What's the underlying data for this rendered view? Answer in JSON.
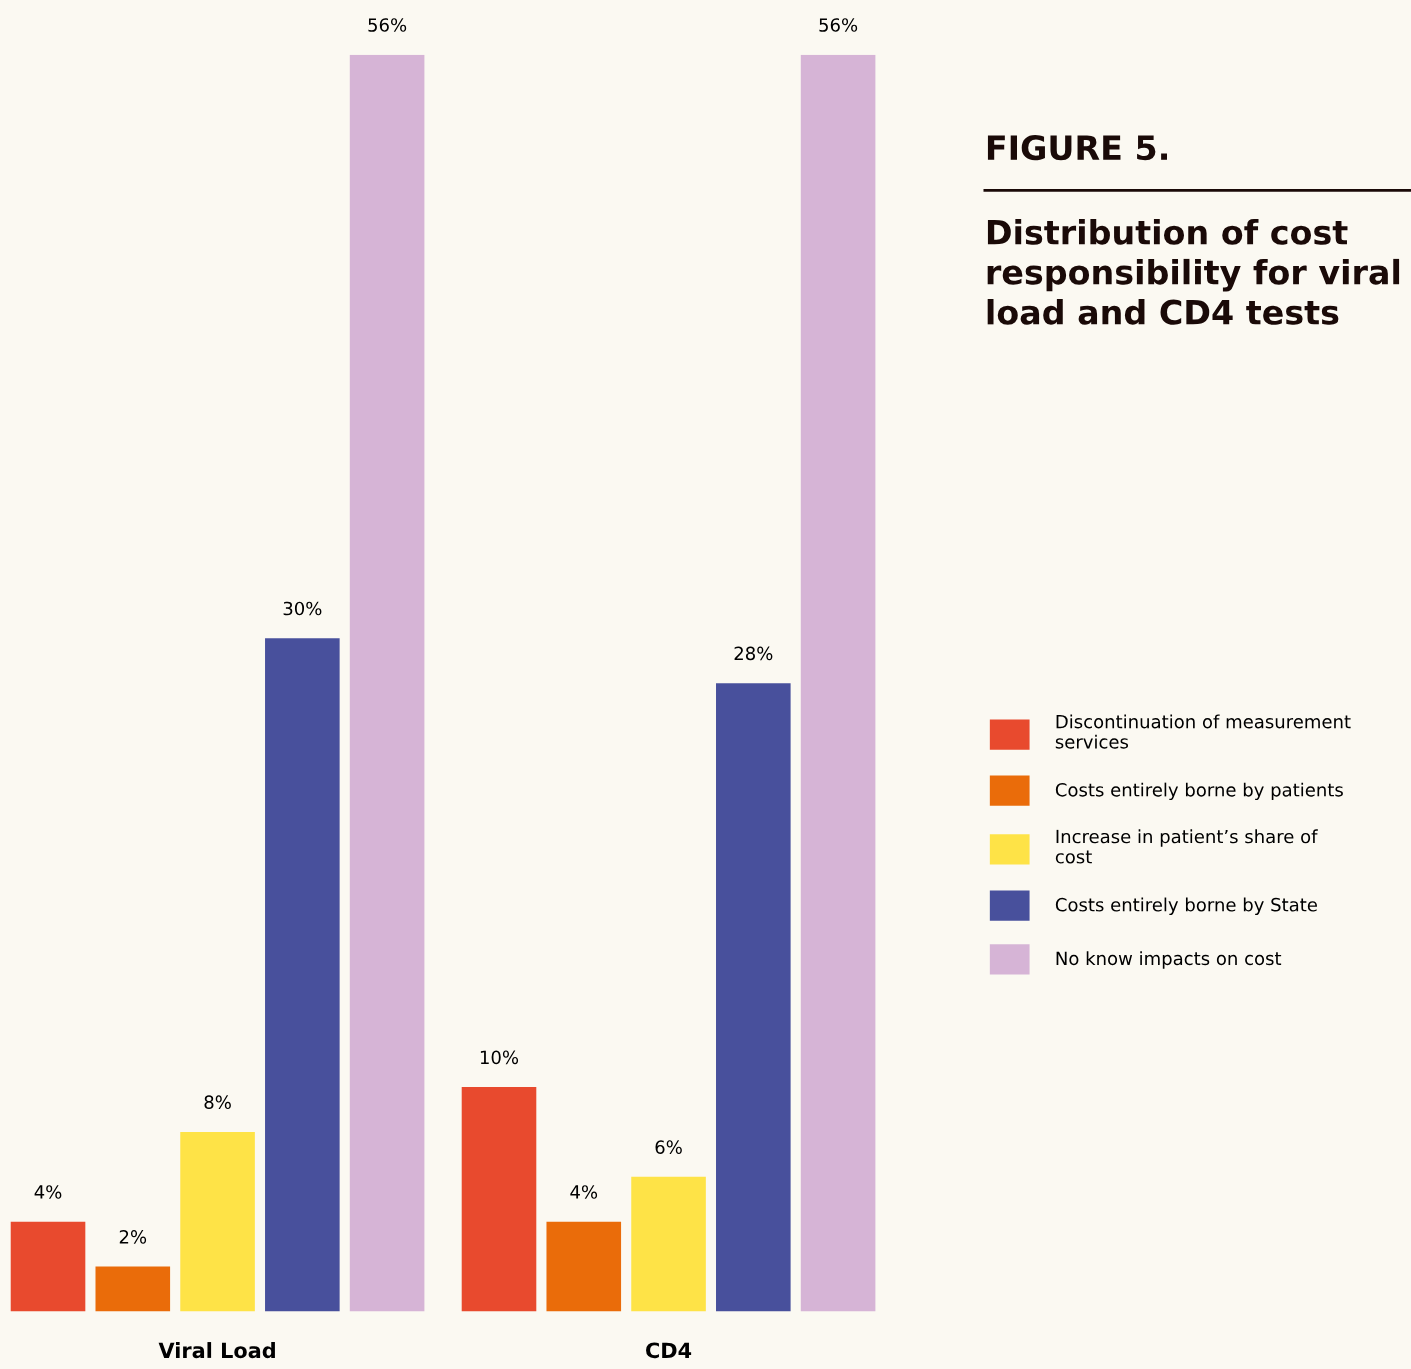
{
  "chart_data": {
    "type": "bar",
    "title": "FIGURE 5.",
    "subtitle": "Distribution of cost responsibility for viral load and CD4 tests",
    "categories": [
      "Viral Load",
      "CD4"
    ],
    "series": [
      {
        "name": "Discontinuation of measurement services",
        "color": "#e84a2e",
        "values": [
          4,
          10
        ],
        "value_labels": [
          "4%",
          "10%"
        ]
      },
      {
        "name": "Costs entirely borne by patients",
        "color": "#ea6c0a",
        "values": [
          2,
          4
        ],
        "value_labels": [
          "2%",
          "4%"
        ]
      },
      {
        "name": "Increase in patient’s share of cost",
        "color": "#fee347",
        "values": [
          8,
          6
        ],
        "value_labels": [
          "8%",
          "6%"
        ]
      },
      {
        "name": "Costs entirely borne by State",
        "color": "#48509c",
        "values": [
          30,
          28
        ],
        "value_labels": [
          "30%",
          "28%"
        ]
      },
      {
        "name": "No know impacts on cost",
        "color": "#d6b4d6",
        "values": [
          56,
          56
        ],
        "value_labels": [
          "56%",
          "56%"
        ]
      }
    ],
    "legend": "right",
    "grid": false
  }
}
